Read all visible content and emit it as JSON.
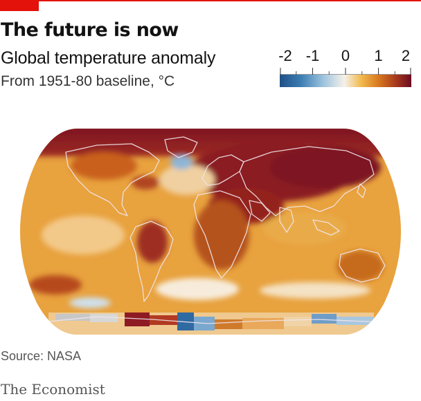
{
  "header": {
    "title": "The future is now",
    "subtitle": "Global temperature anomaly",
    "units": "From 1951-80 baseline, °C"
  },
  "legend": {
    "ticks": [
      {
        "value": -2,
        "label": "-2"
      },
      {
        "value": -1,
        "label": "-1"
      },
      {
        "value": 0,
        "label": "0"
      },
      {
        "value": 1,
        "label": "1"
      },
      {
        "value": 2,
        "label": "2"
      }
    ],
    "range": [
      -2,
      2
    ],
    "colors": {
      "cold_deep": "#1f4f86",
      "cold": "#3c7db3",
      "cool": "#9dc3de",
      "neutral": "#f5f1ea",
      "warm": "#f2b94d",
      "hot": "#d9791f",
      "hotter": "#a83a1d",
      "hottest": "#6b0c22"
    }
  },
  "map": {
    "projection": "Robinson",
    "baseline": "1951-80",
    "coastline_color": "#f0e4ea"
  },
  "footer": {
    "source": "Source: NASA",
    "brand": "The Economist"
  }
}
